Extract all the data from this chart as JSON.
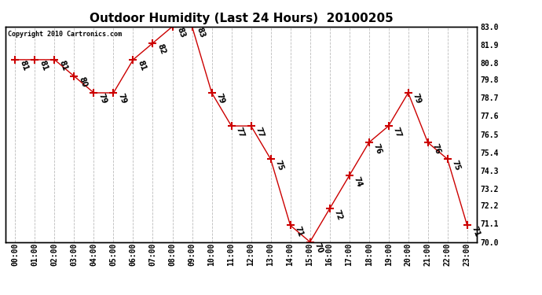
{
  "title": "Outdoor Humidity (Last 24 Hours)  20100205",
  "copyright": "Copyright 2010 Cartronics.com",
  "x_labels": [
    "00:00",
    "01:00",
    "02:00",
    "03:00",
    "04:00",
    "05:00",
    "06:00",
    "07:00",
    "08:00",
    "09:00",
    "10:00",
    "11:00",
    "12:00",
    "13:00",
    "14:00",
    "15:00",
    "16:00",
    "17:00",
    "18:00",
    "19:00",
    "20:00",
    "21:00",
    "22:00",
    "23:00"
  ],
  "y_values": [
    81,
    81,
    81,
    80,
    79,
    79,
    81,
    82,
    83,
    83,
    79,
    77,
    77,
    75,
    71,
    70,
    72,
    74,
    76,
    77,
    79,
    76,
    75,
    71
  ],
  "ylim_min": 70.0,
  "ylim_max": 83.0,
  "yticks": [
    70.0,
    71.1,
    72.2,
    73.2,
    74.3,
    75.4,
    76.5,
    77.6,
    78.7,
    79.8,
    80.8,
    81.9,
    83.0
  ],
  "line_color": "#cc0000",
  "marker": "+",
  "marker_size": 7,
  "marker_color": "#cc0000",
  "bg_color": "#ffffff",
  "grid_color": "#bbbbbb",
  "title_fontsize": 11,
  "label_fontsize": 7,
  "annotation_fontsize": 7,
  "annotation_rotation": -70,
  "copyright_fontsize": 6
}
